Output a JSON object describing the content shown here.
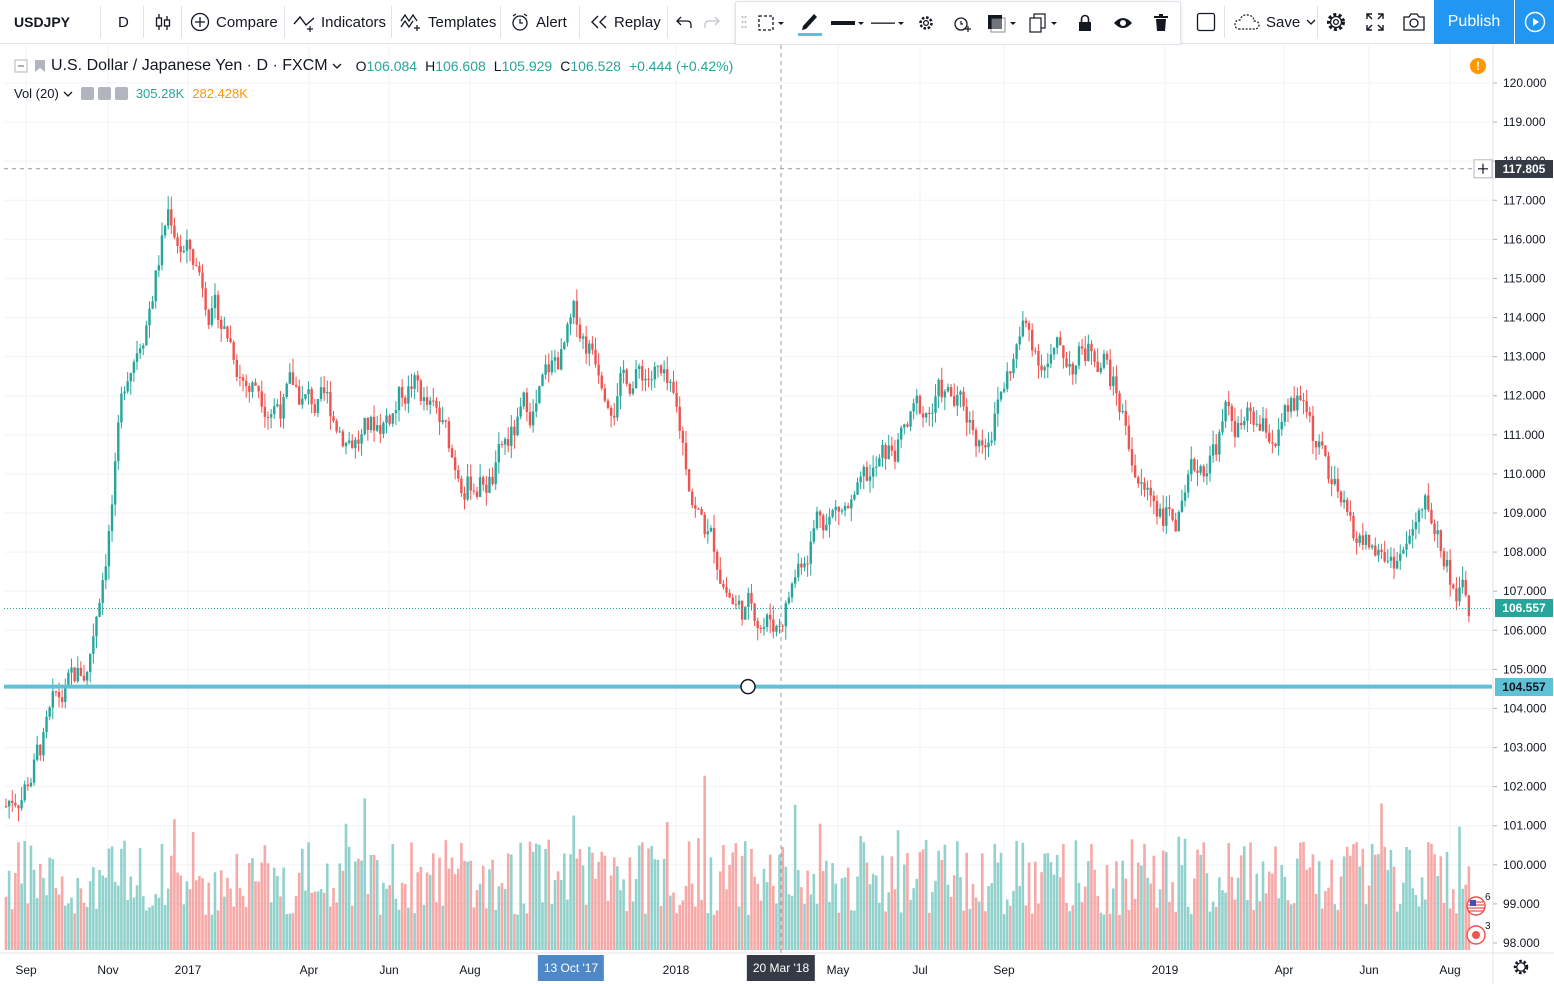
{
  "toolbar": {
    "symbol": "USDJPY",
    "interval": "D",
    "compare": "Compare",
    "indicators": "Indicators",
    "templates": "Templates",
    "alert": "Alert",
    "replay": "Replay",
    "save": "Save",
    "publish": "Publish"
  },
  "legend": {
    "title": "U.S. Dollar / Japanese Yen · D · FXCM",
    "o_label": "O",
    "o_value": "106.084",
    "h_label": "H",
    "h_value": "106.608",
    "l_label": "L",
    "l_value": "105.929",
    "c_label": "C",
    "c_value": "106.528",
    "change": "+0.444 (+0.42%)",
    "vol_label": "Vol (20)",
    "vol_value": "305.28K",
    "vol_ma": "282.428K"
  },
  "price_axis": {
    "ticks": [
      "120.000",
      "119.000",
      "118.000",
      "117.000",
      "116.000",
      "115.000",
      "114.000",
      "113.000",
      "112.000",
      "111.000",
      "110.000",
      "109.000",
      "108.000",
      "107.000",
      "106.000",
      "105.000",
      "104.000",
      "103.000",
      "102.000",
      "101.000",
      "100.000",
      "99.000",
      "98.000"
    ],
    "crosshair_price": "117.805",
    "last_price": "106.557",
    "line_price": "104.557"
  },
  "time_axis": {
    "labels": [
      "Sep",
      "Nov",
      "2017",
      "Apr",
      "Jun",
      "Aug",
      "2018",
      "May",
      "Jul",
      "Sep",
      "2019",
      "Apr",
      "Jun",
      "Aug"
    ],
    "cursor_date": "13 Oct '17",
    "crosshair_date": "20 Mar '18"
  },
  "events": {
    "us_count": "6",
    "jp_count": "3"
  },
  "colors": {
    "up": "#26a69a",
    "down": "#ef5350",
    "accent": "#2196f3",
    "hline": "#5fc1d6"
  },
  "chart_data": {
    "type": "candlestick",
    "symbol": "USDJPY",
    "x": [
      "2016-08",
      "2016-09",
      "2016-10",
      "2016-11",
      "2016-12",
      "2017-01",
      "2017-02",
      "2017-03",
      "2017-04",
      "2017-05",
      "2017-06",
      "2017-07",
      "2017-08",
      "2017-09",
      "2017-10",
      "2017-11",
      "2017-12",
      "2018-01",
      "2018-02",
      "2018-03",
      "2018-04",
      "2018-05",
      "2018-06",
      "2018-07",
      "2018-08",
      "2018-09",
      "2018-10",
      "2018-11",
      "2018-12",
      "2019-01",
      "2019-02",
      "2019-03",
      "2019-04",
      "2019-05",
      "2019-06",
      "2019-07",
      "2019-08"
    ],
    "close": [
      101.5,
      103.3,
      104.8,
      112.6,
      116.8,
      114.7,
      112.5,
      112.2,
      111.3,
      111.0,
      112.5,
      110.2,
      110.1,
      111.6,
      113.5,
      112.8,
      112.7,
      109.1,
      106.7,
      106.3,
      109.3,
      109.0,
      110.6,
      111.8,
      111.0,
      113.6,
      112.8,
      113.4,
      109.6,
      108.9,
      111.4,
      110.8,
      111.5,
      108.3,
      107.8,
      108.8,
      106.5
    ],
    "volume_bars": "daily volume histogram (pane, no scale)",
    "price_range": [
      98.0,
      120.0
    ],
    "horizontal_line": 104.557,
    "last_price": 106.557,
    "crosshair_price": 117.805
  }
}
